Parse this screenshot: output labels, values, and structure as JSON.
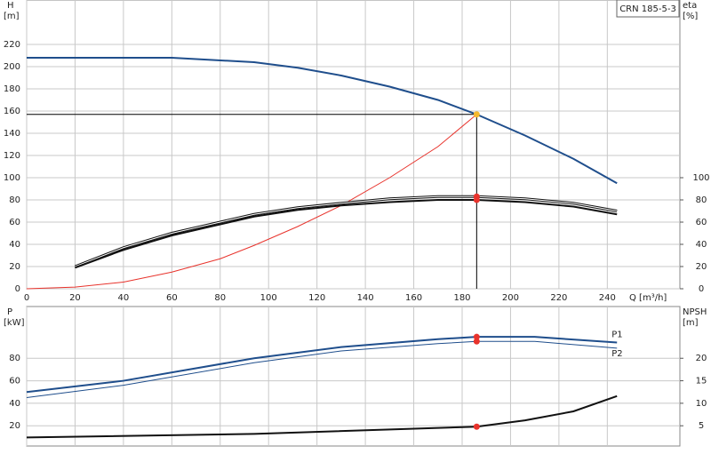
{
  "chart_data": [
    {
      "type": "line",
      "title": "CRN 185-5-3",
      "y_label": "H",
      "y_unit": "[m]",
      "y2_label": "eta",
      "y2_unit": "[%]",
      "x_label": "Q [m³/h]",
      "xlim": [
        0,
        270
      ],
      "xticks": [
        0,
        20,
        40,
        60,
        80,
        100,
        120,
        140,
        160,
        180,
        200,
        220,
        240
      ],
      "ylim": [
        0,
        260
      ],
      "yticks": [
        0,
        20,
        40,
        60,
        80,
        100,
        120,
        140,
        160,
        180,
        200,
        220
      ],
      "y2lim": [
        0,
        260
      ],
      "y2ticks": [
        0,
        20,
        40,
        60,
        80,
        100
      ],
      "grid": true,
      "show_xtick_labels": true,
      "highlight_x": 186,
      "series": [
        {
          "color": "#1f4e8c",
          "width": 2,
          "highlight_color": "#f5b82e",
          "crosshair": true,
          "x": [
            0,
            60,
            94,
            112,
            130,
            150,
            170,
            186,
            206,
            226,
            244
          ],
          "values": [
            208,
            208,
            204,
            199,
            192,
            182,
            170,
            157,
            138,
            117,
            95
          ]
        },
        {
          "color": "#e8332c",
          "width": 1,
          "x": [
            0,
            20,
            40,
            60,
            80,
            94,
            112,
            130,
            150,
            170,
            186
          ],
          "values": [
            0,
            1.5,
            6,
            15,
            27,
            39,
            56,
            75,
            100,
            128,
            157
          ]
        },
        {
          "color": "#111111",
          "width": 3,
          "style": "double",
          "axis": "y2",
          "highlight_color": "#e8332c",
          "x": [
            20,
            40,
            60,
            80,
            94,
            112,
            130,
            150,
            170,
            186,
            206,
            226,
            244
          ],
          "values": [
            20,
            37,
            50,
            60,
            67,
            73,
            77,
            81,
            83,
            83,
            81,
            77,
            70
          ]
        },
        {
          "color": "#111111",
          "width": 2,
          "axis": "y2",
          "highlight_color": "#e8332c",
          "x": [
            20,
            40,
            60,
            80,
            94,
            112,
            130,
            150,
            170,
            186,
            206,
            226,
            244
          ],
          "values": [
            19,
            35,
            48,
            58,
            65,
            71,
            75,
            78,
            80,
            80,
            78,
            74,
            67
          ]
        }
      ]
    },
    {
      "type": "line",
      "y_label": "P",
      "y_unit": "[kW]",
      "y2_label": "NPSH",
      "y2_unit": "[m]",
      "xlim": [
        0,
        270
      ],
      "xticks": [
        0,
        20,
        40,
        60,
        80,
        100,
        120,
        140,
        160,
        180,
        200,
        220,
        240
      ],
      "ylim": [
        2,
        126
      ],
      "yticks": [
        20,
        40,
        60,
        80
      ],
      "y2lim": [
        0.5,
        31.5
      ],
      "y2ticks": [
        5,
        10,
        15,
        20
      ],
      "grid": true,
      "show_xtick_labels": false,
      "highlight_x": 186,
      "series": [
        {
          "name": "P1",
          "color": "#1f4e8c",
          "width": 2,
          "highlight_color": "#e8332c",
          "x": [
            0,
            40,
            94,
            130,
            170,
            186,
            210,
            244
          ],
          "values": [
            50,
            60,
            80,
            90,
            97,
            99,
            99,
            94
          ]
        },
        {
          "name": "P2",
          "color": "#1f4e8c",
          "width": 1,
          "highlight_color": "#e8332c",
          "x": [
            0,
            40,
            94,
            130,
            170,
            186,
            210,
            244
          ],
          "values": [
            45,
            56,
            76,
            86.5,
            93,
            95,
            95,
            89
          ]
        },
        {
          "color": "#111111",
          "width": 2,
          "axis": "y2",
          "highlight_color": "#e8332c",
          "x": [
            0,
            94,
            186,
            206,
            226,
            244
          ],
          "values": [
            2.4,
            3.2,
            4.8,
            6.2,
            8.2,
            11.6
          ]
        }
      ]
    }
  ]
}
